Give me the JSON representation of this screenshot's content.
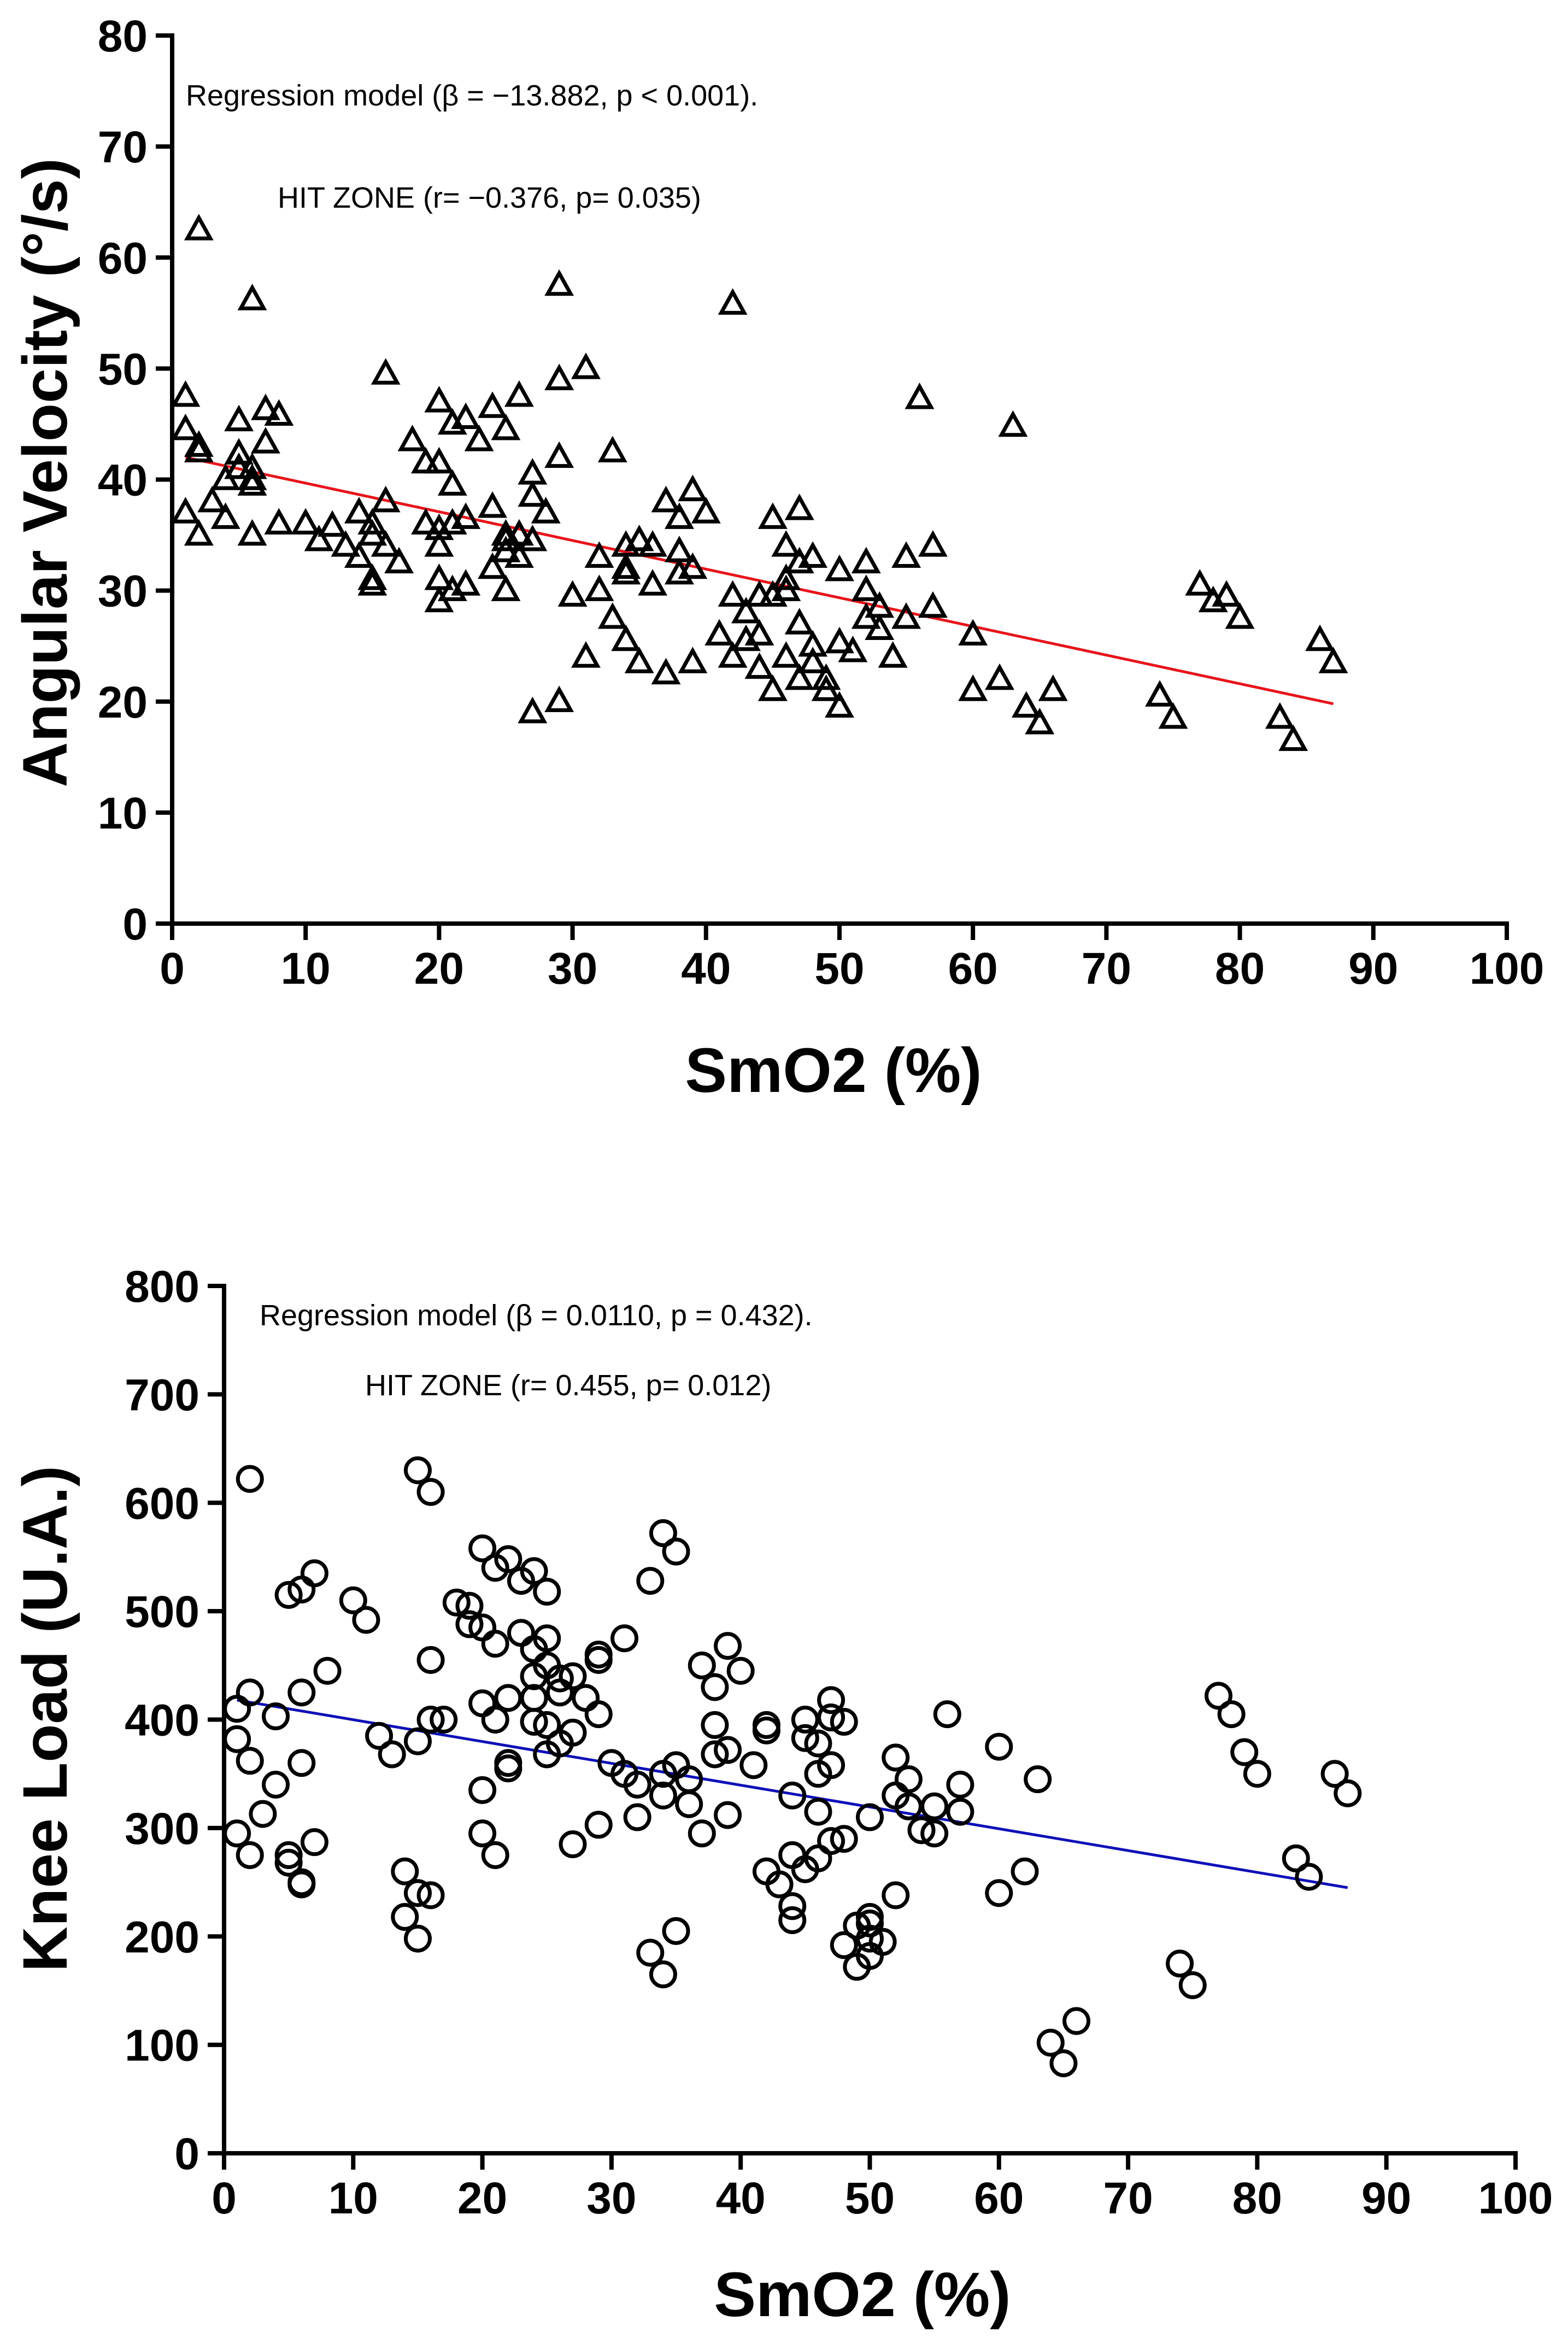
{
  "chart_data": [
    {
      "type": "scatter",
      "xlabel": "SmO2 (%)",
      "ylabel": "Angular Velocity (°/s)",
      "xlim": [
        0,
        100
      ],
      "ylim": [
        0,
        80
      ],
      "xticks": [
        "0",
        "10",
        "20",
        "30",
        "40",
        "50",
        "60",
        "70",
        "80",
        "90",
        "100"
      ],
      "yticks": [
        "0",
        "10",
        "20",
        "30",
        "40",
        "50",
        "60",
        "70",
        "80"
      ],
      "annotations": [
        "Regression model (β = −13.882, p < 0.001).",
        "HIT ZONE (r= −0.376, p= 0.035)"
      ],
      "marker": "triangle",
      "fit_color": "#e8141b",
      "fit_line": {
        "x": [
          1,
          87
        ],
        "y": [
          42.0,
          19.8
        ]
      },
      "points": [
        [
          1,
          47.5
        ],
        [
          1,
          44.5
        ],
        [
          1,
          37
        ],
        [
          2,
          62.5
        ],
        [
          2,
          43
        ],
        [
          2,
          42.5
        ],
        [
          2,
          35
        ],
        [
          3,
          38
        ],
        [
          4,
          36.5
        ],
        [
          4,
          40
        ],
        [
          5,
          45.3
        ],
        [
          5,
          42.3
        ],
        [
          5,
          41
        ],
        [
          6,
          56.2
        ],
        [
          6,
          41
        ],
        [
          6,
          40
        ],
        [
          6,
          39.5
        ],
        [
          6,
          35
        ],
        [
          7,
          46.3
        ],
        [
          7,
          43.3
        ],
        [
          8,
          45.8
        ],
        [
          8,
          36
        ],
        [
          10,
          36
        ],
        [
          11,
          34.5
        ],
        [
          12,
          35.8
        ],
        [
          13,
          34
        ],
        [
          14,
          37
        ],
        [
          14,
          33
        ],
        [
          15,
          36
        ],
        [
          15,
          35
        ],
        [
          15,
          31
        ],
        [
          15,
          30.5
        ],
        [
          16,
          49.5
        ],
        [
          16,
          38
        ],
        [
          16,
          34
        ],
        [
          17,
          32.5
        ],
        [
          18,
          43.5
        ],
        [
          19,
          41.5
        ],
        [
          19,
          36
        ],
        [
          20,
          47
        ],
        [
          20,
          41.5
        ],
        [
          20,
          35.5
        ],
        [
          20,
          34
        ],
        [
          20,
          31
        ],
        [
          20,
          29
        ],
        [
          21,
          45
        ],
        [
          21,
          39.5
        ],
        [
          21,
          36
        ],
        [
          21,
          30
        ],
        [
          22,
          45.5
        ],
        [
          22,
          36.5
        ],
        [
          22,
          30.5
        ],
        [
          23,
          43.5
        ],
        [
          24,
          46.5
        ],
        [
          24,
          37.5
        ],
        [
          24,
          32
        ],
        [
          25,
          44.5
        ],
        [
          25,
          35
        ],
        [
          25,
          34.5
        ],
        [
          25,
          33.5
        ],
        [
          25,
          30
        ],
        [
          26,
          47.5
        ],
        [
          26,
          35
        ],
        [
          26,
          33
        ],
        [
          27,
          40.5
        ],
        [
          27,
          38.5
        ],
        [
          27,
          34.5
        ],
        [
          27,
          19
        ],
        [
          28,
          37
        ],
        [
          29,
          57.5
        ],
        [
          29,
          49
        ],
        [
          29,
          42
        ],
        [
          29,
          20
        ],
        [
          30,
          29.5
        ],
        [
          31,
          50
        ],
        [
          31,
          24
        ],
        [
          32,
          33
        ],
        [
          32,
          30
        ],
        [
          33,
          42.5
        ],
        [
          33,
          27.5
        ],
        [
          34,
          34
        ],
        [
          34,
          32
        ],
        [
          34,
          31.5
        ],
        [
          34,
          25.5
        ],
        [
          35,
          34.5
        ],
        [
          35,
          23.5
        ],
        [
          36,
          34
        ],
        [
          36,
          30.5
        ],
        [
          37,
          38
        ],
        [
          37,
          22.5
        ],
        [
          38,
          36.5
        ],
        [
          38,
          33.5
        ],
        [
          38,
          31.5
        ],
        [
          39,
          39
        ],
        [
          39,
          32
        ],
        [
          39,
          23.5
        ],
        [
          40,
          37
        ],
        [
          41,
          26
        ],
        [
          42,
          55.8
        ],
        [
          42,
          29.5
        ],
        [
          42,
          24
        ],
        [
          43,
          28
        ],
        [
          43,
          25.5
        ],
        [
          44,
          29.5
        ],
        [
          44,
          26
        ],
        [
          44,
          23
        ],
        [
          45,
          36.5
        ],
        [
          45,
          29.5
        ],
        [
          45,
          21
        ],
        [
          46,
          34
        ],
        [
          46,
          31
        ],
        [
          46,
          30
        ],
        [
          46,
          24
        ],
        [
          47,
          37.3
        ],
        [
          47,
          32.5
        ],
        [
          47,
          27
        ],
        [
          47,
          22
        ],
        [
          48,
          33
        ],
        [
          48,
          25
        ],
        [
          48,
          23.5
        ],
        [
          49,
          22
        ],
        [
          49,
          21
        ],
        [
          50,
          31.8
        ],
        [
          50,
          25.3
        ],
        [
          50,
          19.5
        ],
        [
          51,
          24.5
        ],
        [
          52,
          32.5
        ],
        [
          52,
          30
        ],
        [
          52,
          27.5
        ],
        [
          53,
          28.5
        ],
        [
          53,
          26.5
        ],
        [
          54,
          24
        ],
        [
          55,
          33
        ],
        [
          55,
          27.5
        ],
        [
          56,
          47.3
        ],
        [
          57,
          34
        ],
        [
          57,
          28.5
        ],
        [
          60,
          26
        ],
        [
          60,
          21
        ],
        [
          62,
          22
        ],
        [
          63,
          44.8
        ],
        [
          64,
          19.5
        ],
        [
          65,
          18
        ],
        [
          66,
          21
        ],
        [
          74,
          20.5
        ],
        [
          75,
          18.5
        ],
        [
          77,
          30.5
        ],
        [
          78,
          29
        ],
        [
          79,
          29.5
        ],
        [
          80,
          27.5
        ],
        [
          83,
          18.5
        ],
        [
          84,
          16.5
        ],
        [
          86,
          25.5
        ],
        [
          87,
          23.5
        ]
      ]
    },
    {
      "type": "scatter",
      "xlabel": "SmO2 (%)",
      "ylabel": "Knee Load (U.A.)",
      "xlim": [
        0,
        100
      ],
      "ylim": [
        0,
        800
      ],
      "xticks": [
        "0",
        "10",
        "20",
        "30",
        "40",
        "50",
        "60",
        "70",
        "80",
        "90",
        "100"
      ],
      "yticks": [
        "0",
        "100",
        "200",
        "300",
        "400",
        "500",
        "600",
        "700",
        "800"
      ],
      "annotations": [
        "Regression model (β = 0.0110, p = 0.432).",
        "HIT ZONE (r= 0.455, p= 0.012)"
      ],
      "marker": "circle",
      "fit_color": "#0f10b8",
      "fit_line": {
        "x": [
          1,
          87
        ],
        "y": [
          418,
          245
        ]
      },
      "points": [
        [
          1,
          410
        ],
        [
          1,
          382
        ],
        [
          1,
          295
        ],
        [
          2,
          622
        ],
        [
          2,
          425
        ],
        [
          2,
          362
        ],
        [
          2,
          275
        ],
        [
          3,
          313
        ],
        [
          4,
          340
        ],
        [
          4,
          403
        ],
        [
          5,
          515
        ],
        [
          5,
          275
        ],
        [
          5,
          268
        ],
        [
          6,
          520
        ],
        [
          6,
          425
        ],
        [
          6,
          360
        ],
        [
          6,
          250
        ],
        [
          6,
          248
        ],
        [
          7,
          535
        ],
        [
          7,
          287
        ],
        [
          8,
          445
        ],
        [
          10,
          510
        ],
        [
          11,
          492
        ],
        [
          12,
          385
        ],
        [
          13,
          368
        ],
        [
          14,
          260
        ],
        [
          14,
          218
        ],
        [
          15,
          630
        ],
        [
          15,
          380
        ],
        [
          15,
          240
        ],
        [
          15,
          198
        ],
        [
          16,
          610
        ],
        [
          16,
          455
        ],
        [
          16,
          400
        ],
        [
          16,
          238
        ],
        [
          17,
          400
        ],
        [
          18,
          508
        ],
        [
          19,
          505
        ],
        [
          19,
          488
        ],
        [
          20,
          558
        ],
        [
          20,
          485
        ],
        [
          20,
          415
        ],
        [
          20,
          335
        ],
        [
          20,
          295
        ],
        [
          21,
          540
        ],
        [
          21,
          470
        ],
        [
          21,
          400
        ],
        [
          21,
          275
        ],
        [
          22,
          548
        ],
        [
          22,
          420
        ],
        [
          22,
          360
        ],
        [
          22,
          355
        ],
        [
          23,
          528
        ],
        [
          23,
          480
        ],
        [
          24,
          537
        ],
        [
          24,
          465
        ],
        [
          24,
          440
        ],
        [
          24,
          420
        ],
        [
          24,
          398
        ],
        [
          25,
          518
        ],
        [
          25,
          475
        ],
        [
          25,
          450
        ],
        [
          25,
          395
        ],
        [
          25,
          368
        ],
        [
          26,
          438
        ],
        [
          26,
          425
        ],
        [
          26,
          378
        ],
        [
          27,
          440
        ],
        [
          27,
          388
        ],
        [
          27,
          285
        ],
        [
          28,
          420
        ],
        [
          29,
          460
        ],
        [
          29,
          455
        ],
        [
          29,
          405
        ],
        [
          29,
          303
        ],
        [
          30,
          360
        ],
        [
          31,
          475
        ],
        [
          31,
          350
        ],
        [
          32,
          340
        ],
        [
          32,
          310
        ],
        [
          33,
          528
        ],
        [
          33,
          185
        ],
        [
          34,
          572
        ],
        [
          34,
          350
        ],
        [
          34,
          330
        ],
        [
          34,
          165
        ],
        [
          35,
          555
        ],
        [
          35,
          358
        ],
        [
          35,
          205
        ],
        [
          36,
          322
        ],
        [
          36,
          345
        ],
        [
          37,
          450
        ],
        [
          37,
          295
        ],
        [
          38,
          430
        ],
        [
          38,
          395
        ],
        [
          38,
          368
        ],
        [
          39,
          468
        ],
        [
          39,
          372
        ],
        [
          39,
          312
        ],
        [
          40,
          445
        ],
        [
          41,
          358
        ],
        [
          42,
          395
        ],
        [
          42,
          390
        ],
        [
          42,
          260
        ],
        [
          43,
          248
        ],
        [
          44,
          330
        ],
        [
          44,
          275
        ],
        [
          44,
          228
        ],
        [
          44,
          215
        ],
        [
          45,
          400
        ],
        [
          45,
          383
        ],
        [
          45,
          262
        ],
        [
          46,
          378
        ],
        [
          46,
          350
        ],
        [
          46,
          315
        ],
        [
          46,
          272
        ],
        [
          47,
          418
        ],
        [
          47,
          402
        ],
        [
          47,
          358
        ],
        [
          47,
          288
        ],
        [
          48,
          398
        ],
        [
          48,
          290
        ],
        [
          48,
          192
        ],
        [
          49,
          210
        ],
        [
          49,
          172
        ],
        [
          50,
          218
        ],
        [
          50,
          212
        ],
        [
          50,
          198
        ],
        [
          50,
          182
        ],
        [
          50,
          310
        ],
        [
          51,
          195
        ],
        [
          52,
          365
        ],
        [
          52,
          330
        ],
        [
          52,
          238
        ],
        [
          53,
          345
        ],
        [
          53,
          320
        ],
        [
          54,
          298
        ],
        [
          55,
          320
        ],
        [
          55,
          295
        ],
        [
          56,
          405
        ],
        [
          57,
          340
        ],
        [
          57,
          315
        ],
        [
          60,
          375
        ],
        [
          60,
          240
        ],
        [
          62,
          260
        ],
        [
          63,
          345
        ],
        [
          64,
          102
        ],
        [
          65,
          83
        ],
        [
          66,
          122
        ],
        [
          74,
          175
        ],
        [
          75,
          155
        ],
        [
          77,
          422
        ],
        [
          78,
          405
        ],
        [
          79,
          370
        ],
        [
          80,
          350
        ],
        [
          83,
          272
        ],
        [
          84,
          255
        ],
        [
          86,
          350
        ],
        [
          87,
          332
        ]
      ]
    }
  ]
}
